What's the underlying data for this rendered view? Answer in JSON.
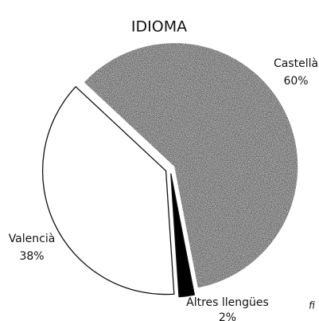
{
  "chart_data": {
    "type": "pie",
    "title": "IDIOMA",
    "categories": [
      "Castellà",
      "Altres llengües",
      "Valencià"
    ],
    "values": [
      60,
      2,
      38
    ],
    "value_labels": [
      "60%",
      "2%",
      "38%"
    ],
    "colors": [
      "#bdbdbd",
      "#000000",
      "#ffffff"
    ],
    "footer_mark": "fi"
  }
}
